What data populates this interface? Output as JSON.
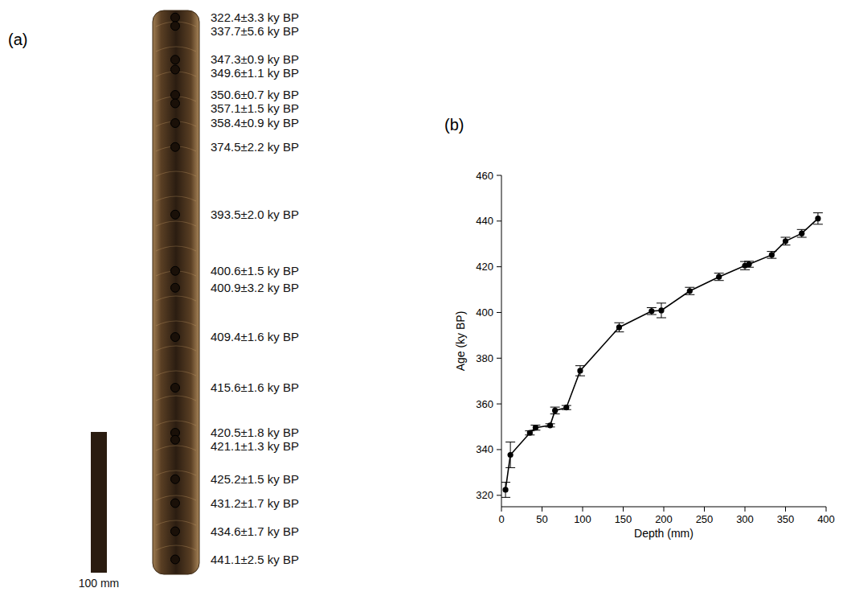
{
  "panels": {
    "a": "(a)",
    "b": "(b)"
  },
  "sample": {
    "labels": [
      "322.4±3.3 ky BP",
      "337.7±5.6 ky BP",
      "347.3±0.9 ky BP",
      "349.6±1.1 ky BP",
      "350.6±0.7 ky BP",
      "357.1±1.5 ky BP",
      "358.4±0.9 ky BP",
      "374.5±2.2 ky BP",
      "393.5±2.0 ky BP",
      "400.6±1.5 ky BP",
      "400.9±3.2 ky BP",
      "409.4±1.6 ky BP",
      "415.6±1.6 ky BP",
      "420.5±1.8 ky BP",
      "421.1±1.3 ky BP",
      "425.2±1.5 ky BP",
      "431.2±1.7 ky BP",
      "434.6±1.7 ky BP",
      "441.1±2.5 ky BP"
    ],
    "scale_mm": 100,
    "scale_label": "100 mm"
  },
  "chart_data": {
    "type": "line",
    "x_label": "Depth (mm)",
    "y_label": "Age (ky BP)",
    "x": [
      5,
      11,
      35,
      42,
      60,
      66,
      80,
      97,
      145,
      185,
      197,
      232,
      268,
      300,
      305,
      333,
      350,
      370,
      390
    ],
    "y": [
      322.4,
      337.7,
      347.3,
      349.6,
      350.6,
      357.1,
      358.4,
      374.5,
      393.5,
      400.6,
      400.9,
      409.4,
      415.6,
      420.5,
      421.1,
      425.2,
      431.2,
      434.6,
      441.1
    ],
    "errors": [
      3.3,
      5.6,
      0.9,
      1.1,
      0.7,
      1.5,
      0.9,
      2.2,
      2.0,
      1.5,
      3.2,
      1.6,
      1.6,
      1.8,
      1.3,
      1.5,
      1.7,
      1.7,
      2.5
    ],
    "color": "#000000",
    "marker": "circle",
    "xlim": [
      0,
      400
    ],
    "ylim": [
      315,
      460
    ],
    "xticks": [
      0,
      50,
      100,
      150,
      200,
      250,
      300,
      350,
      400
    ],
    "yticks": [
      320,
      340,
      360,
      380,
      400,
      420,
      440,
      460
    ],
    "grid": false
  }
}
